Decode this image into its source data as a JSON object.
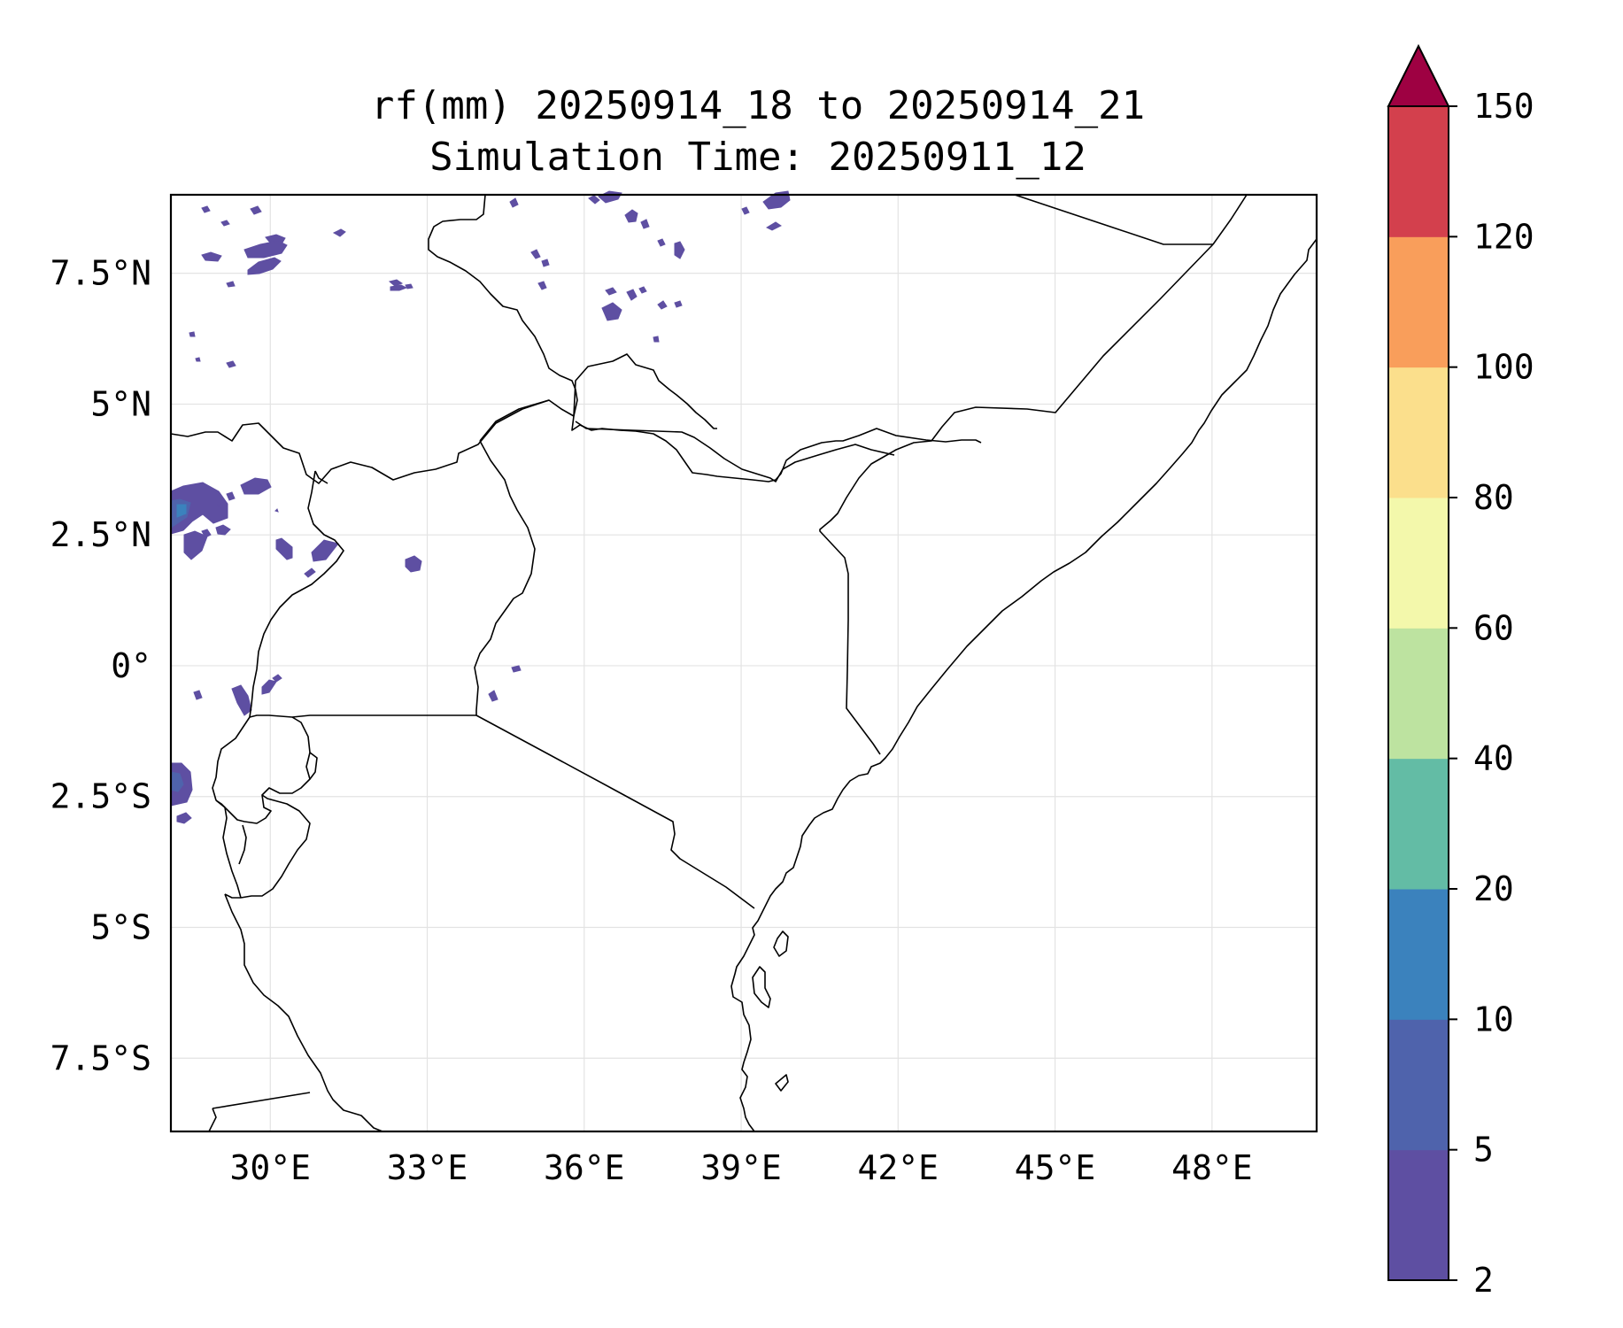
{
  "title": {
    "line1": "rf(mm) 20250914_18 to 20250914_21",
    "line2": "Simulation Time: 20250911_12"
  },
  "map": {
    "lon_range": [
      28.1,
      50.0
    ],
    "lat_range": [
      -8.9,
      9.0
    ],
    "lon_ticks": [
      {
        "value": 30,
        "label": "30°E"
      },
      {
        "value": 33,
        "label": "33°E"
      },
      {
        "value": 36,
        "label": "36°E"
      },
      {
        "value": 39,
        "label": "39°E"
      },
      {
        "value": 42,
        "label": "42°E"
      },
      {
        "value": 45,
        "label": "45°E"
      },
      {
        "value": 48,
        "label": "48°E"
      }
    ],
    "lat_ticks": [
      {
        "value": 7.5,
        "label": "7.5°N"
      },
      {
        "value": 5,
        "label": "5°N"
      },
      {
        "value": 2.5,
        "label": "2.5°N"
      },
      {
        "value": 0,
        "label": "0°"
      },
      {
        "value": -2.5,
        "label": "2.5°S"
      },
      {
        "value": -5,
        "label": "5°S"
      },
      {
        "value": -7.5,
        "label": "7.5°S"
      }
    ],
    "grid": true
  },
  "colorbar": {
    "levels": [
      "2",
      "5",
      "10",
      "20",
      "40",
      "60",
      "80",
      "100",
      "120",
      "150"
    ],
    "colors": [
      "#5e4fa2",
      "#4f63ac",
      "#3b82bd",
      "#63bca5",
      "#bde3a0",
      "#f3f8ab",
      "#fbdf8c",
      "#f99e5b",
      "#d3404d"
    ],
    "extend_color": "#9e0142"
  },
  "rain_colors": {
    "low": "#5e4fa2",
    "mid": "#4f63ac",
    "high": "#3b82bd"
  }
}
